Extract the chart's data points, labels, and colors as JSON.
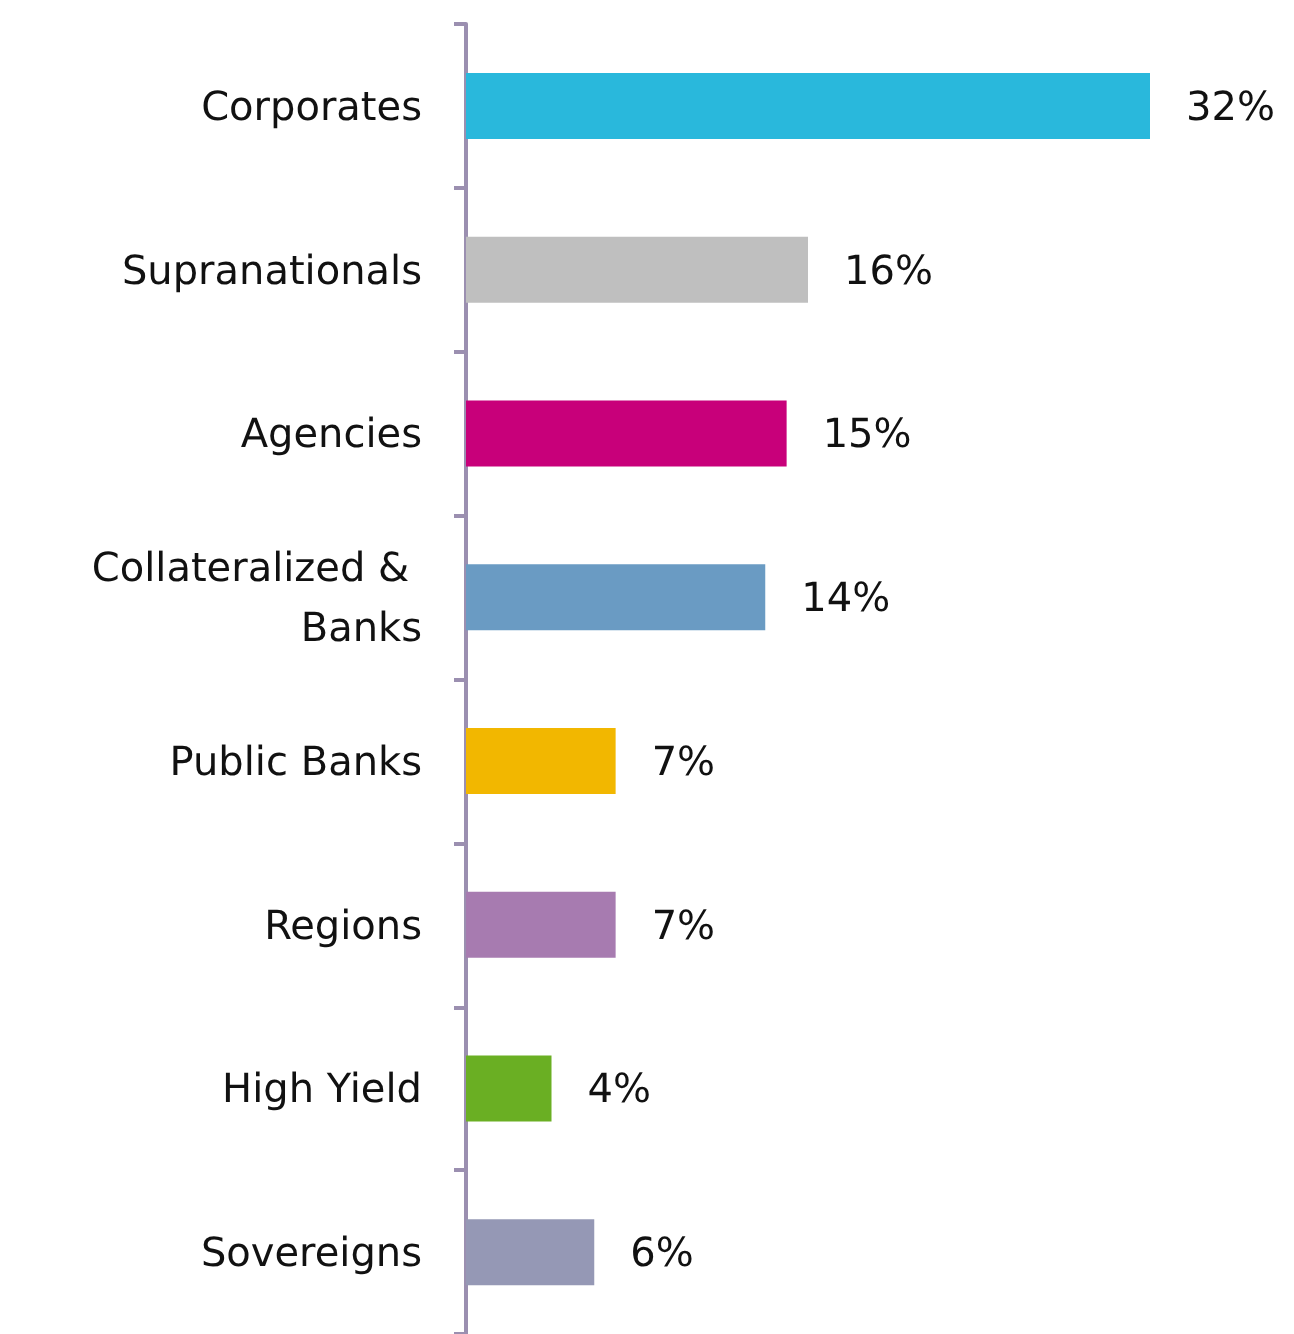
{
  "chart_data": {
    "type": "bar",
    "orientation": "horizontal",
    "categories": [
      "Corporates",
      "Supranationals",
      "Agencies",
      "Collateralized & Banks",
      "Public Banks",
      "Regions",
      "High Yield",
      "Sovereigns"
    ],
    "values": [
      32,
      16,
      15,
      14,
      7,
      7,
      4,
      6
    ],
    "colors": [
      "#29b8dc",
      "#bfbfbf",
      "#c8007a",
      "#6a9bc3",
      "#f2b700",
      "#a77bb0",
      "#6aaf23",
      "#9598b5"
    ],
    "value_labels": [
      "32%",
      "16%",
      "15%",
      "14%",
      "7%",
      "7%",
      "4%",
      "6%"
    ]
  }
}
